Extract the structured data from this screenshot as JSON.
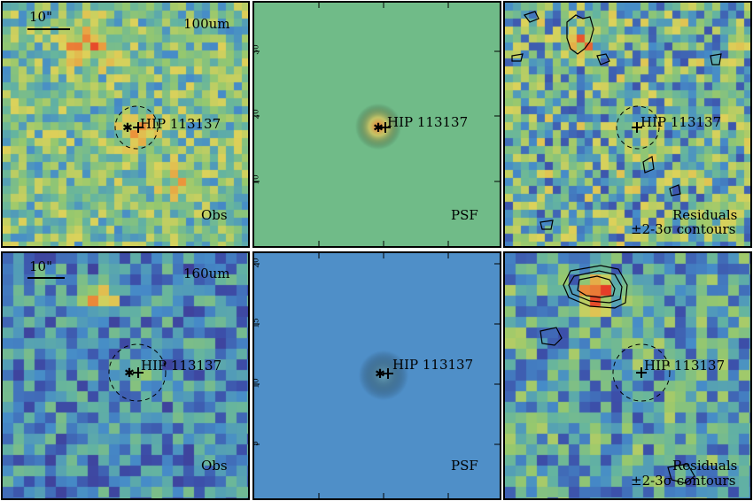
{
  "figure": {
    "target_name": "HIP 113137",
    "scale_bar_label": "10\"",
    "rows": [
      {
        "band": "100um",
        "colormap_bias": "green-yellow",
        "panels": [
          {
            "kind": "observed",
            "label": "Obs"
          },
          {
            "kind": "psf",
            "label": "PSF",
            "left_ticks": [
              "30",
              "20",
              "10"
            ]
          },
          {
            "kind": "residuals",
            "label": "Residuals",
            "label2": "±2-3σ contours"
          }
        ]
      },
      {
        "band": "160um",
        "colormap_bias": "blue",
        "panels": [
          {
            "kind": "observed",
            "label": "Obs"
          },
          {
            "kind": "psf",
            "label": "PSF",
            "left_ticks": [
              "20",
              "15",
              "10",
              "5"
            ]
          },
          {
            "kind": "residuals",
            "label": "Residuals",
            "label2": "±2-3σ contours"
          }
        ]
      }
    ]
  },
  "colors": {
    "psf_background_100": "#70bb88",
    "psf_background_160": "#4f8fc8",
    "hot": "#e83a2a"
  }
}
